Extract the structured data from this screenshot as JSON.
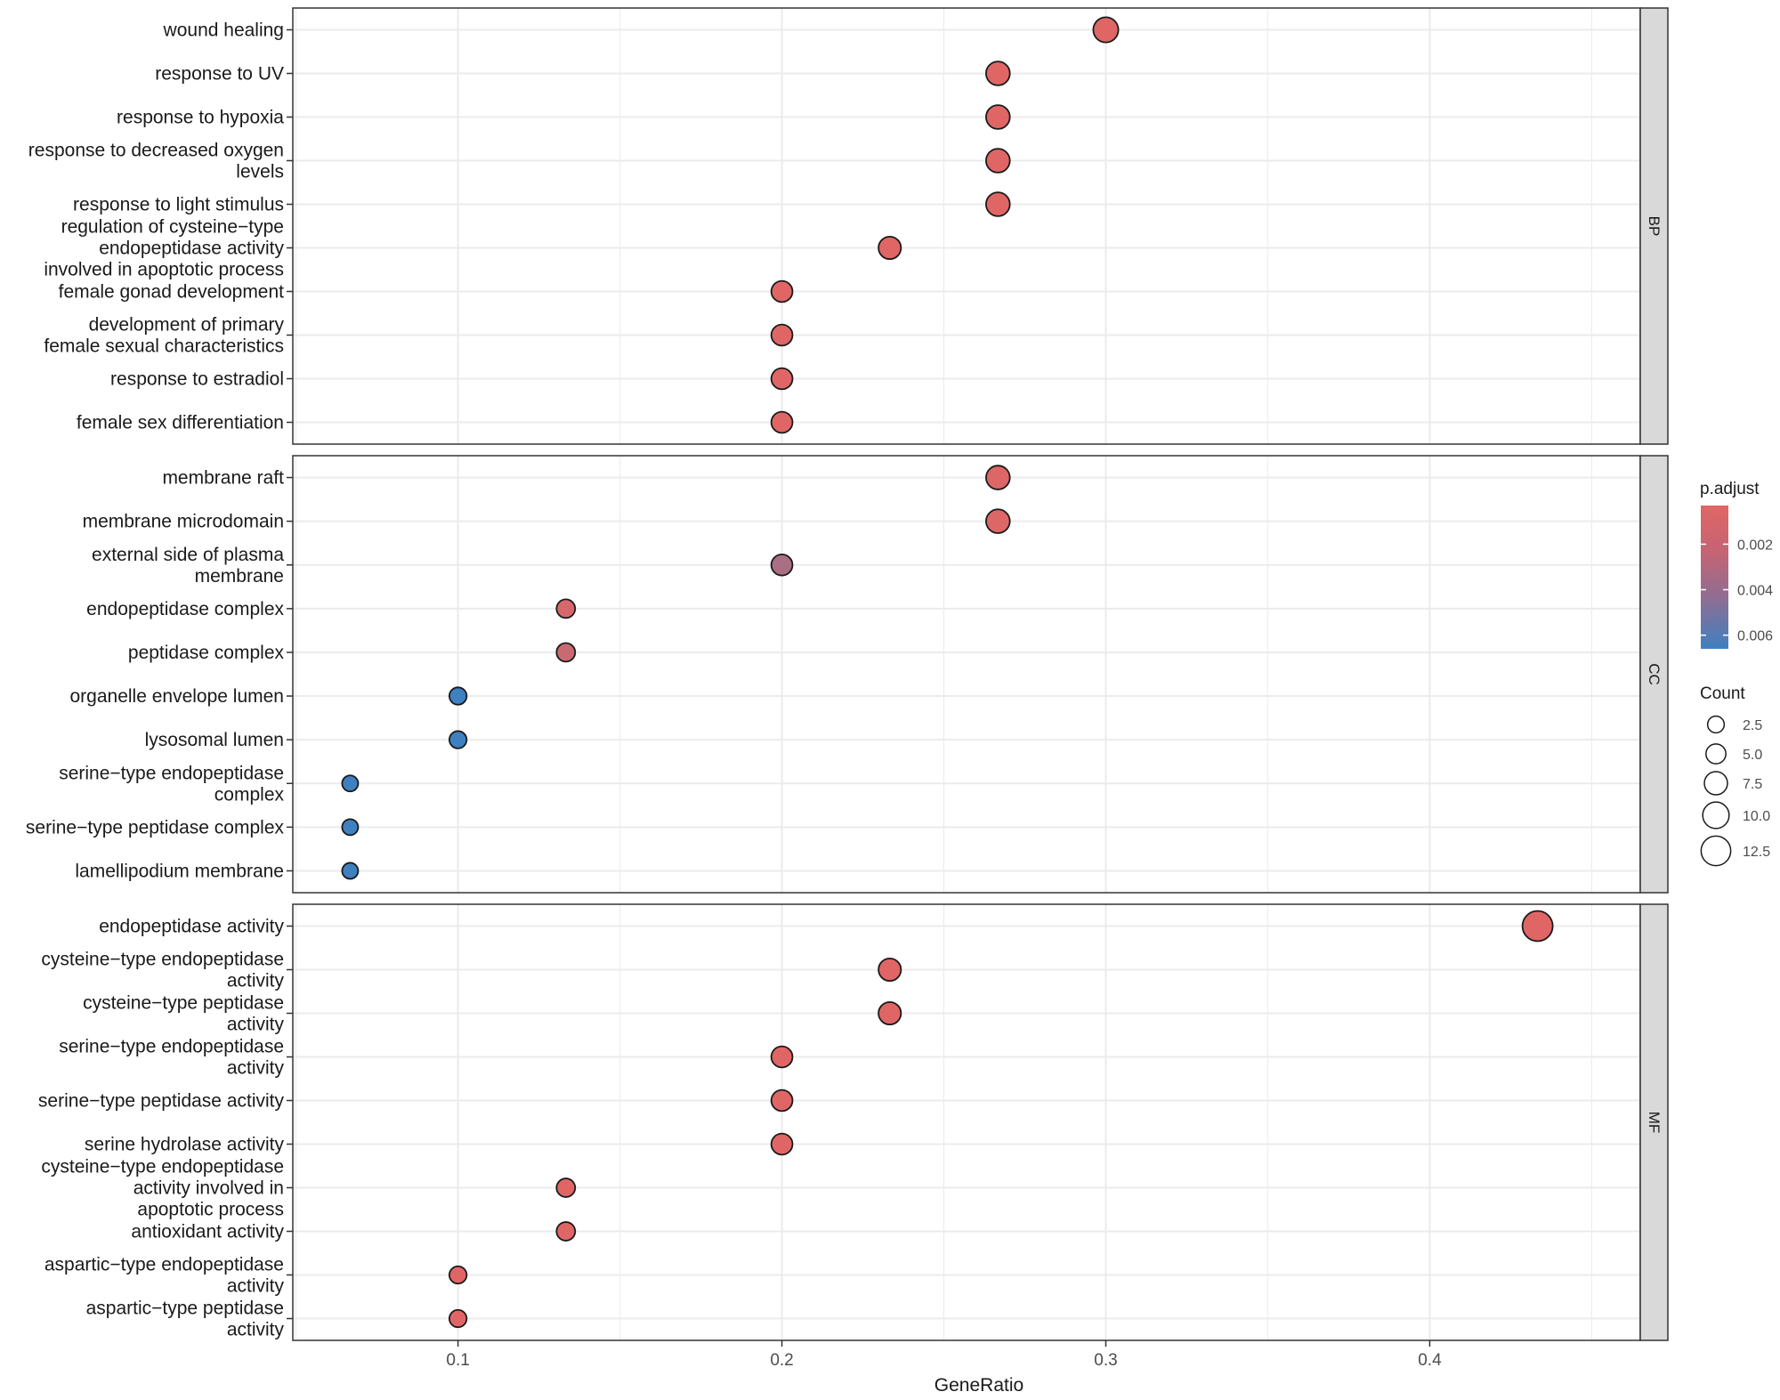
{
  "chart_data": {
    "type": "scatter",
    "xlabel": "GeneRatio",
    "xlim": [
      0.049,
      0.465
    ],
    "xticks": [
      "0.1",
      "0.2",
      "0.3",
      "0.4"
    ],
    "xtick_values": [
      0.1,
      0.2,
      0.3,
      0.4
    ],
    "colors": {
      "high": "#e06666",
      "low": "#3f80c0",
      "grid": "#ebebeb",
      "strip": "#d9d9d9",
      "border": "#333333"
    },
    "color_legend": {
      "title": "p.adjust",
      "range": [
        0.0003,
        0.0066
      ],
      "breaks": [
        "0.002",
        "0.004",
        "0.006"
      ],
      "break_values": [
        0.002,
        0.004,
        0.006
      ]
    },
    "size_legend": {
      "title": "Count",
      "labels": [
        "2.5",
        "5.0",
        "7.5",
        "10.0",
        "12.5"
      ],
      "values": [
        2.5,
        5.0,
        7.5,
        10.0,
        12.5
      ],
      "count_range": [
        2,
        13
      ]
    },
    "facets": [
      {
        "name": "BP",
        "terms": [
          {
            "label": [
              "wound healing"
            ],
            "gene_ratio": 0.3,
            "count": 9,
            "p_adjust": 0.0003
          },
          {
            "label": [
              "response to UV"
            ],
            "gene_ratio": 0.2667,
            "count": 8,
            "p_adjust": 0.0003
          },
          {
            "label": [
              "response to hypoxia"
            ],
            "gene_ratio": 0.2667,
            "count": 8,
            "p_adjust": 0.0003
          },
          {
            "label": [
              "response to decreased oxygen",
              "levels"
            ],
            "gene_ratio": 0.2667,
            "count": 8,
            "p_adjust": 0.0003
          },
          {
            "label": [
              "response to light stimulus"
            ],
            "gene_ratio": 0.2667,
            "count": 8,
            "p_adjust": 0.0003
          },
          {
            "label": [
              "regulation of cysteine−type",
              "endopeptidase activity",
              "involved in apoptotic process"
            ],
            "gene_ratio": 0.2333,
            "count": 7,
            "p_adjust": 0.0003
          },
          {
            "label": [
              "female gonad development"
            ],
            "gene_ratio": 0.2,
            "count": 6,
            "p_adjust": 0.0003
          },
          {
            "label": [
              "development of primary",
              "female sexual characteristics"
            ],
            "gene_ratio": 0.2,
            "count": 6,
            "p_adjust": 0.0003
          },
          {
            "label": [
              "response to estradiol"
            ],
            "gene_ratio": 0.2,
            "count": 6,
            "p_adjust": 0.0003
          },
          {
            "label": [
              "female sex differentiation"
            ],
            "gene_ratio": 0.2,
            "count": 6,
            "p_adjust": 0.0003
          }
        ]
      },
      {
        "name": "CC",
        "terms": [
          {
            "label": [
              "membrane raft"
            ],
            "gene_ratio": 0.2667,
            "count": 8,
            "p_adjust": 0.0004
          },
          {
            "label": [
              "membrane microdomain"
            ],
            "gene_ratio": 0.2667,
            "count": 8,
            "p_adjust": 0.0004
          },
          {
            "label": [
              "external side of plasma",
              "membrane"
            ],
            "gene_ratio": 0.2,
            "count": 6,
            "p_adjust": 0.0024
          },
          {
            "label": [
              "endopeptidase complex"
            ],
            "gene_ratio": 0.1333,
            "count": 4,
            "p_adjust": 0.0007
          },
          {
            "label": [
              "peptidase complex"
            ],
            "gene_ratio": 0.1333,
            "count": 4,
            "p_adjust": 0.0012
          },
          {
            "label": [
              "organelle envelope lumen"
            ],
            "gene_ratio": 0.1,
            "count": 3,
            "p_adjust": 0.0066
          },
          {
            "label": [
              "lysosomal lumen"
            ],
            "gene_ratio": 0.1,
            "count": 3,
            "p_adjust": 0.0066
          },
          {
            "label": [
              "serine−type endopeptidase",
              "complex"
            ],
            "gene_ratio": 0.0667,
            "count": 2,
            "p_adjust": 0.0066
          },
          {
            "label": [
              "serine−type peptidase complex"
            ],
            "gene_ratio": 0.0667,
            "count": 2,
            "p_adjust": 0.0066
          },
          {
            "label": [
              "lamellipodium membrane"
            ],
            "gene_ratio": 0.0667,
            "count": 2,
            "p_adjust": 0.0066
          }
        ]
      },
      {
        "name": "MF",
        "terms": [
          {
            "label": [
              "endopeptidase activity"
            ],
            "gene_ratio": 0.4333,
            "count": 13,
            "p_adjust": 0.0003
          },
          {
            "label": [
              "cysteine−type endopeptidase",
              "activity"
            ],
            "gene_ratio": 0.2333,
            "count": 7,
            "p_adjust": 0.0003
          },
          {
            "label": [
              "cysteine−type peptidase",
              "activity"
            ],
            "gene_ratio": 0.2333,
            "count": 7,
            "p_adjust": 0.0003
          },
          {
            "label": [
              "serine−type endopeptidase",
              "activity"
            ],
            "gene_ratio": 0.2,
            "count": 6,
            "p_adjust": 0.0003
          },
          {
            "label": [
              "serine−type peptidase activity"
            ],
            "gene_ratio": 0.2,
            "count": 6,
            "p_adjust": 0.0003
          },
          {
            "label": [
              "serine hydrolase activity"
            ],
            "gene_ratio": 0.2,
            "count": 6,
            "p_adjust": 0.0003
          },
          {
            "label": [
              "cysteine−type endopeptidase",
              "activity involved in",
              "apoptotic process"
            ],
            "gene_ratio": 0.1333,
            "count": 4,
            "p_adjust": 0.0003
          },
          {
            "label": [
              "antioxidant activity"
            ],
            "gene_ratio": 0.1333,
            "count": 4,
            "p_adjust": 0.0003
          },
          {
            "label": [
              "aspartic−type endopeptidase",
              "activity"
            ],
            "gene_ratio": 0.1,
            "count": 3,
            "p_adjust": 0.0003
          },
          {
            "label": [
              "aspartic−type peptidase",
              "activity"
            ],
            "gene_ratio": 0.1,
            "count": 3,
            "p_adjust": 0.0003
          }
        ]
      }
    ]
  }
}
